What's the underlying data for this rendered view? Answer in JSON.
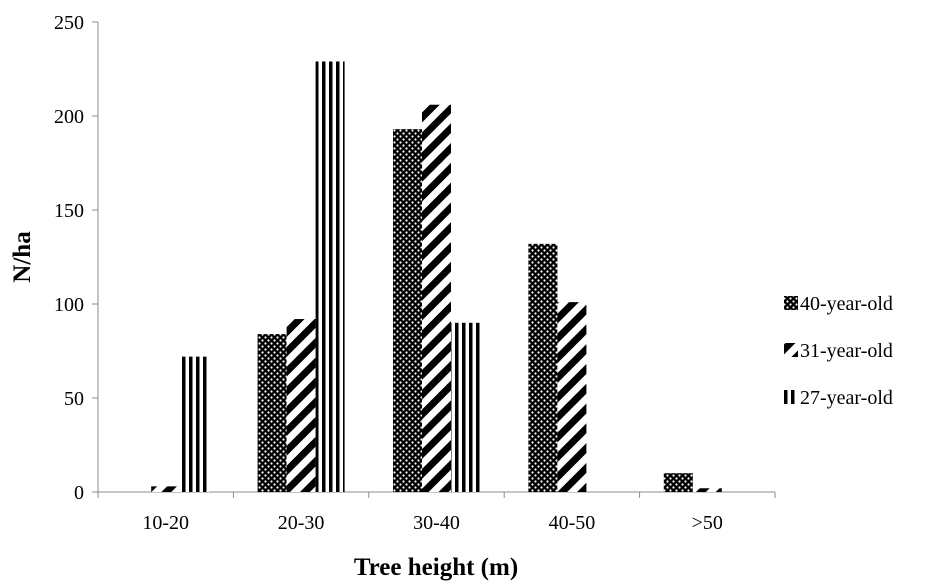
{
  "chart_data": {
    "type": "bar",
    "categories": [
      "10-20",
      "20-30",
      "30-40",
      "40-50",
      ">50"
    ],
    "series": [
      {
        "name": "40-year-old",
        "values": [
          0,
          84,
          193,
          132,
          10
        ],
        "pattern": "dots"
      },
      {
        "name": "31-year-old",
        "values": [
          3,
          92,
          206,
          101,
          2
        ],
        "pattern": "diagonal"
      },
      {
        "name": "27-year-old",
        "values": [
          72,
          229,
          90,
          0,
          0
        ],
        "pattern": "vertical"
      }
    ],
    "title": "",
    "xlabel": "Tree height (m)",
    "ylabel": "N/ha",
    "ylim": [
      0,
      250
    ],
    "yticks": [
      "0",
      "50",
      "100",
      "150",
      "200",
      "250"
    ],
    "grid": false,
    "legend_position": "right"
  }
}
